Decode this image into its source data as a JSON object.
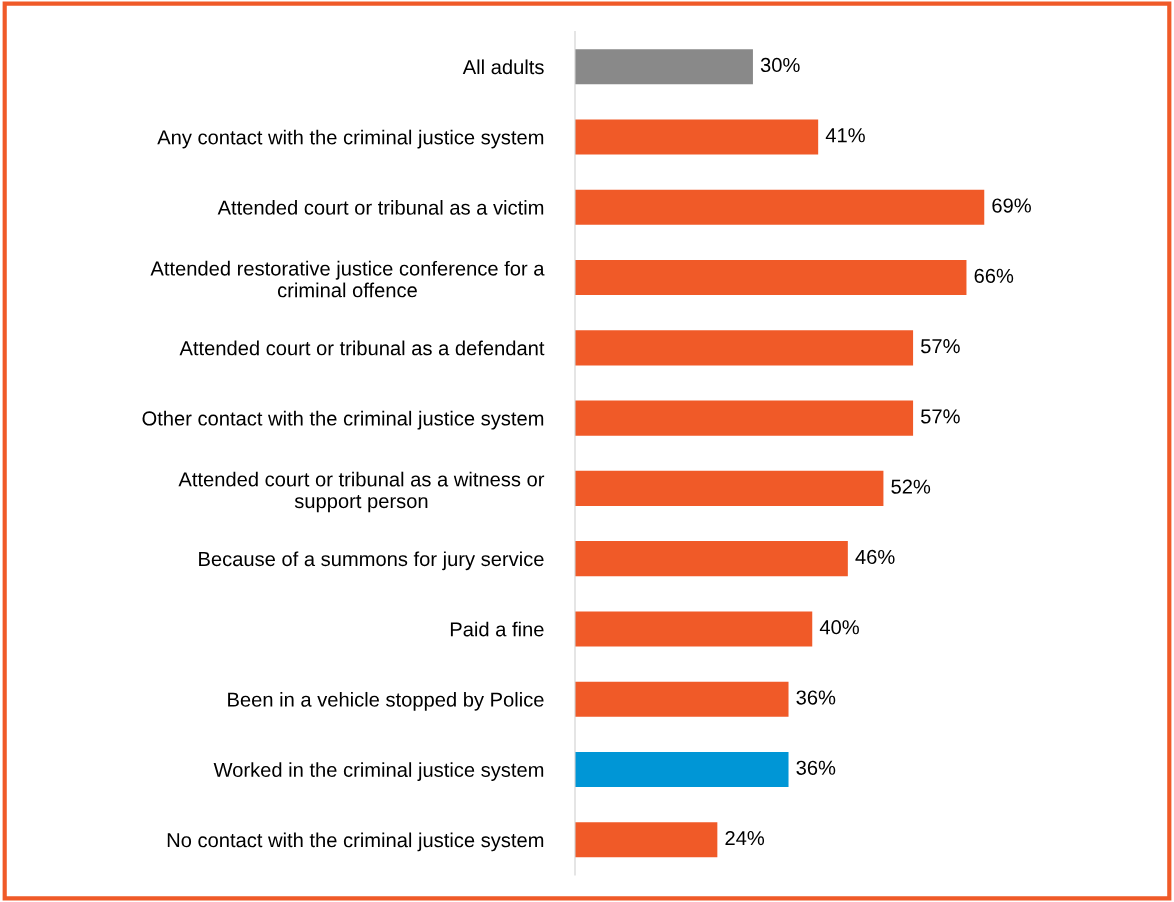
{
  "chart_data": {
    "type": "bar",
    "orientation": "horizontal",
    "data_labels": true,
    "grid": false,
    "categories": [
      "All adults",
      "Any contact with the criminal justice system",
      "Attended court or tribunal as a victim",
      "Attended restorative justice conference for a criminal offence",
      "Attended court or tribunal as a defendant",
      "Other contact with the criminal justice system",
      "Attended court or tribunal as a witness or support person",
      "Because of a summons for jury service",
      "Paid a fine",
      "Been in a vehicle stopped by Police",
      "Worked in the criminal justice system",
      "No contact with the criminal justice system"
    ],
    "values": [
      30,
      41,
      69,
      66,
      57,
      57,
      52,
      46,
      40,
      36,
      36,
      24
    ],
    "value_labels": [
      "30%",
      "41%",
      "69%",
      "66%",
      "57%",
      "57%",
      "52%",
      "46%",
      "40%",
      "36%",
      "36%",
      "24%"
    ],
    "colors": [
      "#898989",
      "#f05a28",
      "#f05a28",
      "#f05a28",
      "#f05a28",
      "#f05a28",
      "#f05a28",
      "#f05a28",
      "#f05a28",
      "#f05a28",
      "#0096d6",
      "#f05a28"
    ]
  }
}
